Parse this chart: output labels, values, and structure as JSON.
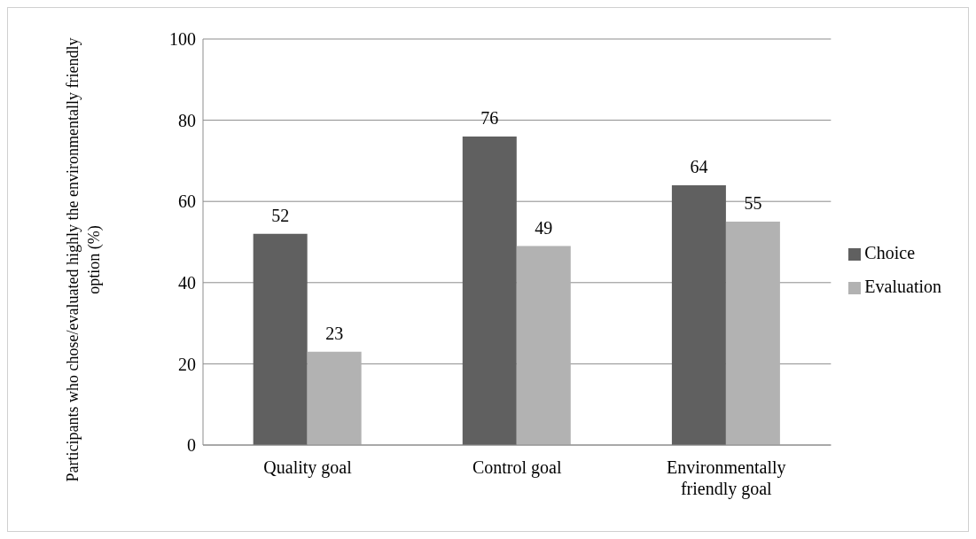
{
  "chart_data": {
    "type": "bar",
    "ylabel": "Participants who chose/evaluated highly the environmentally friendly option (%)",
    "categories": [
      "Quality goal",
      "Control goal",
      "Environmentally friendly goal"
    ],
    "series": [
      {
        "name": "Choice",
        "color": "#606060",
        "values": [
          52,
          76,
          64
        ]
      },
      {
        "name": "Evaluation",
        "color": "#b2b2b2",
        "values": [
          23,
          49,
          55
        ]
      }
    ],
    "ylim": [
      0,
      100
    ],
    "yticks": [
      0,
      20,
      40,
      60,
      80,
      100
    ],
    "grid": "y",
    "legend": "right",
    "data_labels": true
  }
}
